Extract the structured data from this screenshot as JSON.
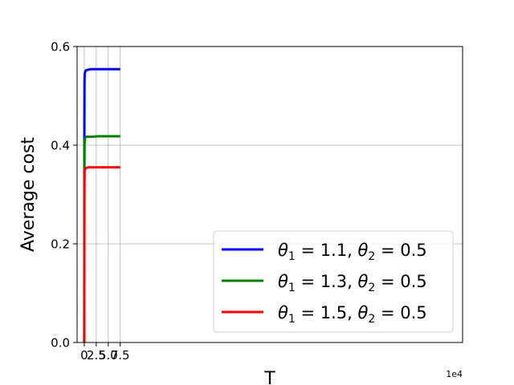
{
  "chart_data": {
    "type": "line",
    "xlabel": "T",
    "ylabel": "Average cost",
    "x_offset_label": "1e4",
    "xlim": [
      -1.5,
      79
    ],
    "ylim": [
      0,
      0.6
    ],
    "xticks": [
      0,
      2.5,
      5.0,
      7.5
    ],
    "xtick_labels": [
      "0",
      "2.5",
      "5.0",
      "7.5"
    ],
    "yticks": [
      0,
      0.2,
      0.4,
      0.6
    ],
    "ytick_labels": [
      "0.0",
      "0.2",
      "0.4",
      "0.6"
    ],
    "grid": true,
    "legend_position": "lower-right",
    "series": [
      {
        "name": "θ₁ = 1.1, θ₂ = 0.5",
        "name_parts": {
          "a": "1",
          "av": "1.1",
          "b": "2",
          "bv": "0.5"
        },
        "color": "#0000ff",
        "x": [
          0,
          0.02,
          0.05,
          0.1,
          0.2,
          0.4,
          0.8,
          1.5,
          3,
          5,
          7.5
        ],
        "y": [
          0.0,
          0.45,
          0.53,
          0.545,
          0.55,
          0.552,
          0.553,
          0.554,
          0.554,
          0.554,
          0.554
        ]
      },
      {
        "name": "θ₁ = 1.3, θ₂ = 0.5",
        "name_parts": {
          "a": "1",
          "av": "1.3",
          "b": "2",
          "bv": "0.5"
        },
        "color": "#008000",
        "x": [
          0,
          0.02,
          0.05,
          0.1,
          0.2,
          0.4,
          0.8,
          1.5,
          3,
          5,
          7.5
        ],
        "y": [
          0.0,
          0.35,
          0.4,
          0.41,
          0.415,
          0.417,
          0.417,
          0.417,
          0.418,
          0.418,
          0.418
        ]
      },
      {
        "name": "θ₁ = 1.5, θ₂ = 0.5",
        "name_parts": {
          "a": "1",
          "av": "1.5",
          "b": "2",
          "bv": "0.5"
        },
        "color": "#ff0000",
        "x": [
          0,
          0.02,
          0.05,
          0.1,
          0.2,
          0.4,
          0.8,
          1.5,
          3,
          5,
          7.5
        ],
        "y": [
          0.0,
          0.3,
          0.345,
          0.35,
          0.352,
          0.354,
          0.355,
          0.355,
          0.355,
          0.355,
          0.355
        ]
      }
    ]
  }
}
